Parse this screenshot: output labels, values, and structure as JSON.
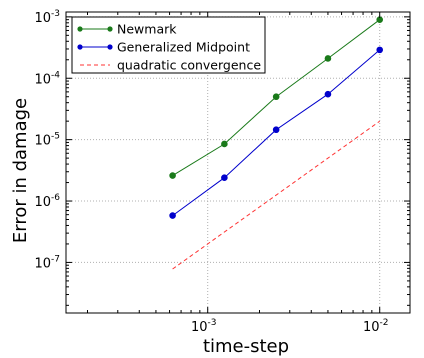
{
  "chart_data": {
    "type": "line",
    "xlabel": "time-step",
    "ylabel": "Error in damage",
    "xscale": "log",
    "yscale": "log",
    "xlim": [
      0.00015,
      0.015
    ],
    "ylim": [
      1.5e-08,
      0.0012
    ],
    "grid": true,
    "legend_position": "top-left",
    "x_ticks": [
      {
        "base": "10",
        "exp": "-3",
        "value": 0.001
      },
      {
        "base": "10",
        "exp": "-2",
        "value": 0.01
      }
    ],
    "y_ticks": [
      {
        "base": "10",
        "exp": "-7",
        "value": 1e-07
      },
      {
        "base": "10",
        "exp": "-6",
        "value": 1e-06
      },
      {
        "base": "10",
        "exp": "-5",
        "value": 1e-05
      },
      {
        "base": "10",
        "exp": "-4",
        "value": 0.0001
      },
      {
        "base": "10",
        "exp": "-3",
        "value": 0.001
      }
    ],
    "series": [
      {
        "name": "Newmark",
        "color": "#1a7a1a",
        "style": "solid-markers",
        "x": [
          0.000625,
          0.00125,
          0.0025,
          0.005,
          0.01
        ],
        "y": [
          2.6e-06,
          8.5e-06,
          5e-05,
          0.00021,
          0.0009
        ]
      },
      {
        "name": "Generalized Midpoint",
        "color": "#0000cc",
        "style": "solid-markers",
        "x": [
          0.000625,
          0.00125,
          0.0025,
          0.005,
          0.01
        ],
        "y": [
          5.8e-07,
          2.4e-06,
          1.45e-05,
          5.5e-05,
          0.00029
        ]
      },
      {
        "name": "quadratic convergence",
        "color": "#ff3333",
        "style": "dashed",
        "x": [
          0.000625,
          0.01
        ],
        "y": [
          7.8e-08,
          2e-05
        ]
      }
    ]
  }
}
